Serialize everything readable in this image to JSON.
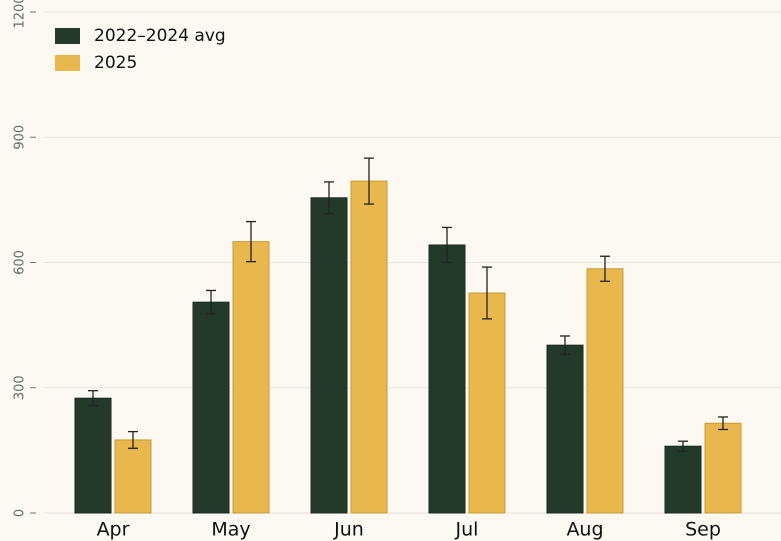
{
  "chart_data": {
    "type": "bar",
    "categories": [
      "Apr",
      "May",
      "Jun",
      "Jul",
      "Aug",
      "Sep"
    ],
    "series": [
      {
        "name": "2022–2024 avg",
        "color": "#233a2b",
        "values": [
          275,
          505,
          755,
          642,
          402,
          160
        ],
        "errors": [
          18,
          28,
          38,
          42,
          22,
          12
        ]
      },
      {
        "name": "2025",
        "color": "#e8b84f",
        "values": [
          175,
          650,
          795,
          527,
          585,
          215
        ],
        "errors": [
          20,
          48,
          55,
          62,
          30,
          15
        ]
      }
    ],
    "ylim": [
      0,
      1200
    ],
    "yticks": [
      0,
      300,
      600,
      900,
      1200
    ],
    "grid": true,
    "legend": "upper left"
  }
}
